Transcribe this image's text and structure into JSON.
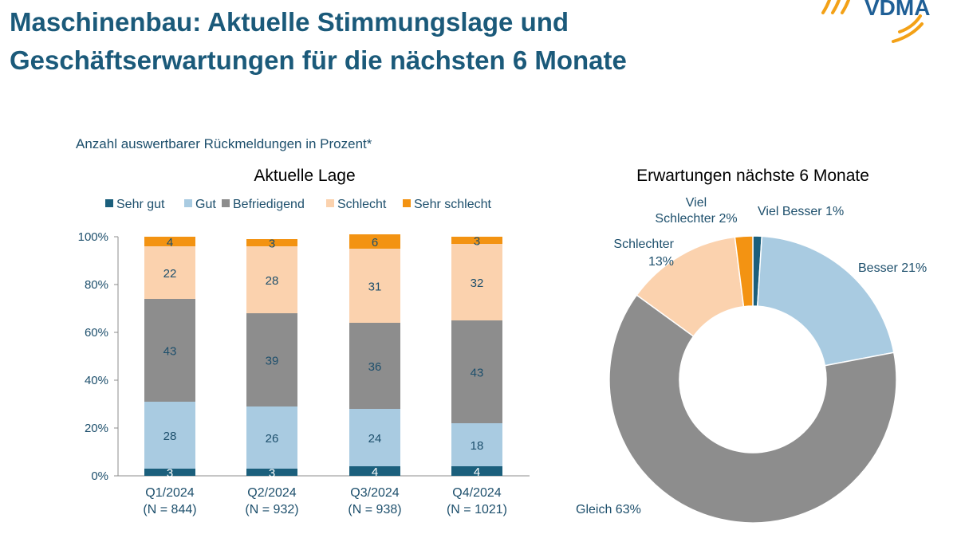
{
  "header": {
    "title_line1": "Maschinenbau: Aktuelle Stimmungslage und",
    "title_line2": "Geschäftserwartungen für die nächsten 6 Monate",
    "logo_text": "VDMA"
  },
  "note": "Anzahl auswertbarer Rückmeldungen in Prozent*",
  "colors": {
    "sehr_gut": "#1b5f7c",
    "gut": "#a9cbe1",
    "befriedigend": "#8d8d8d",
    "schlecht": "#fbd2ae",
    "sehr_schlecht": "#f39312",
    "text": "#1d4f6c",
    "axis": "#8c8c8c"
  },
  "chart_data": [
    {
      "type": "bar",
      "stacked": true,
      "title": "Aktuelle Lage",
      "categories": [
        "Q1/2024",
        "Q2/2024",
        "Q3/2024",
        "Q4/2024"
      ],
      "category_sublabels": [
        "(N = 844)",
        "(N = 932)",
        "(N = 938)",
        "(N = 1021)"
      ],
      "series": [
        {
          "name": "Sehr gut",
          "values": [
            3,
            3,
            4,
            4
          ]
        },
        {
          "name": "Gut",
          "values": [
            28,
            26,
            24,
            18
          ]
        },
        {
          "name": "Befriedigend",
          "values": [
            43,
            39,
            36,
            43
          ]
        },
        {
          "name": "Schlecht",
          "values": [
            22,
            28,
            31,
            32
          ]
        },
        {
          "name": "Sehr schlecht",
          "values": [
            4,
            3,
            6,
            3
          ]
        }
      ],
      "yticks": [
        "0%",
        "20%",
        "40%",
        "60%",
        "80%",
        "100%"
      ],
      "ylim": [
        0,
        100
      ],
      "legend": "top"
    },
    {
      "type": "pie",
      "donut": true,
      "title": "Erwartungen nächste 6 Monate",
      "slices": [
        {
          "label": "Viel Besser 1%",
          "value": 1
        },
        {
          "label": "Besser 21%",
          "value": 21
        },
        {
          "label": "Gleich  63%",
          "value": 63
        },
        {
          "label": "Schlechter 13%",
          "label_lines": [
            "Schlechter",
            "13%"
          ],
          "value": 13
        },
        {
          "label": "Viel Schlechter 2%",
          "label_lines": [
            "Viel",
            "Schlechter 2%"
          ],
          "value": 2
        }
      ]
    }
  ]
}
